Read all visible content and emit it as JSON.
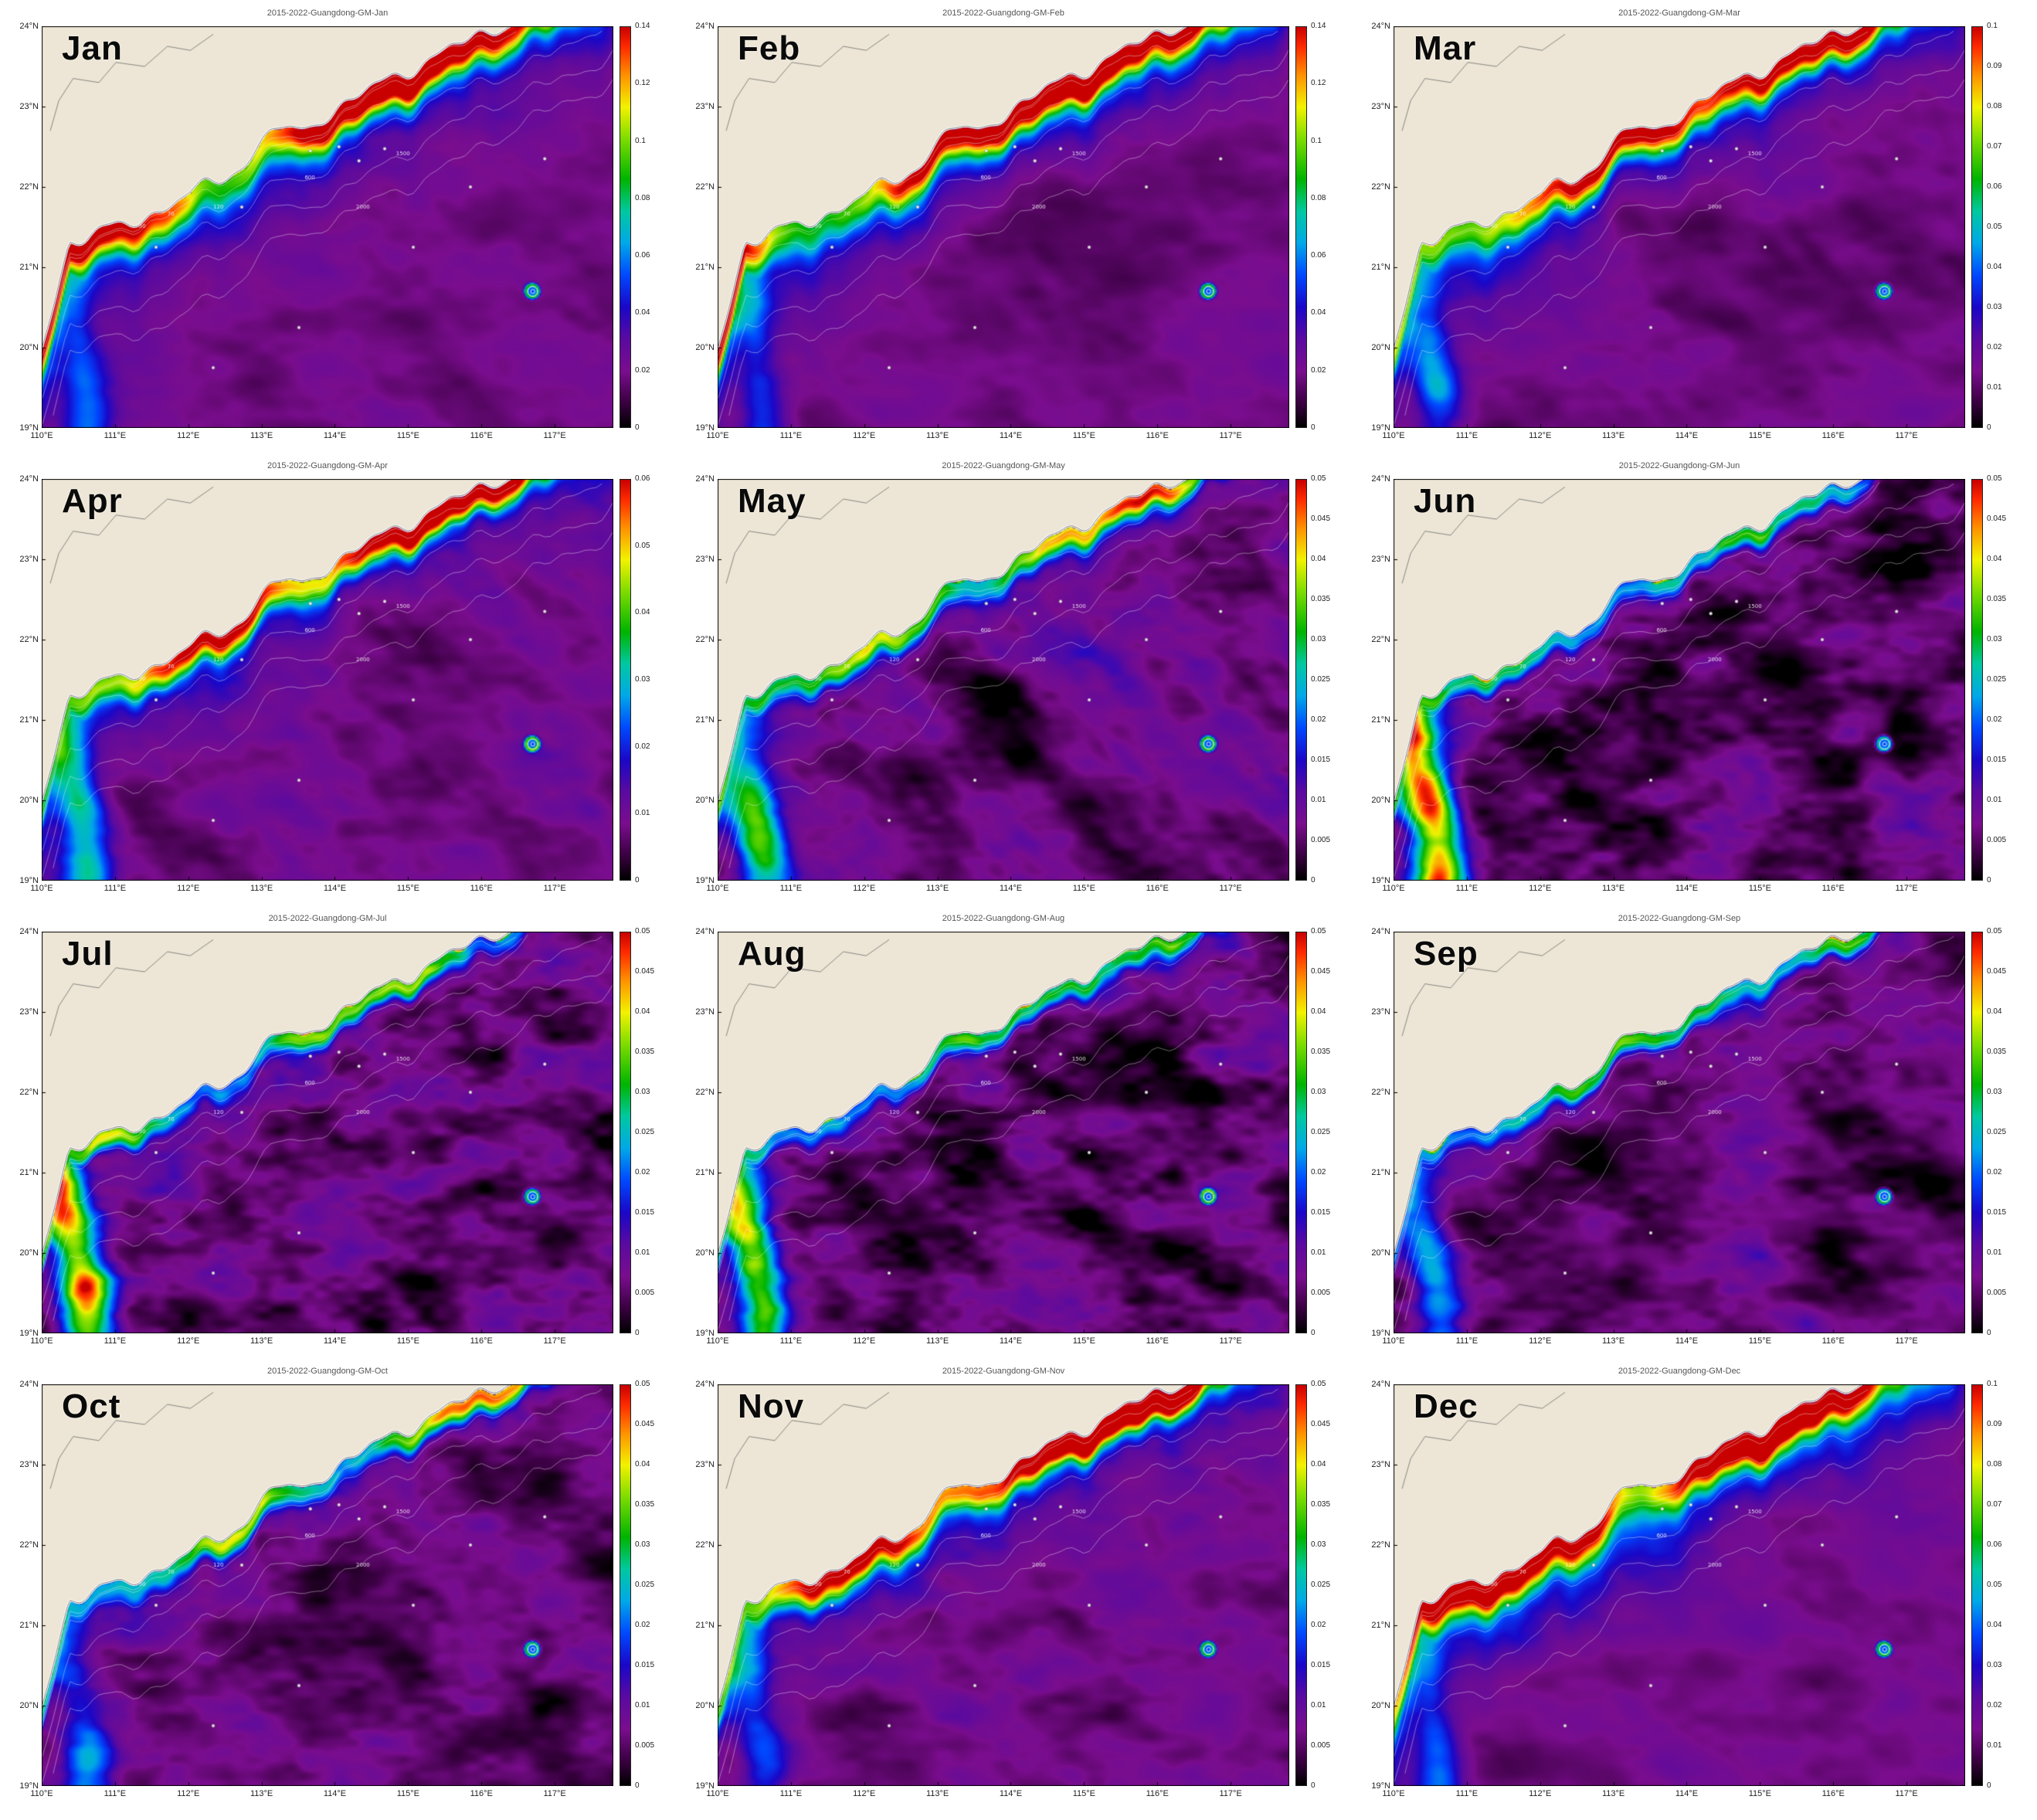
{
  "figure": {
    "layout": {
      "rows": 4,
      "cols": 3
    }
  },
  "chart_data": {
    "type": "heatmap",
    "description": "Twelve monthly climatology maps (2015-2022, Guangdong GM) over the northern South China Sea. High values (green/yellow/red) form a band along the Guangdong coast; open sea is low (purple/black). Depth contours and a small atoll ring near 116.7E 20.7N are overlaid.",
    "x_ticks": [
      "110°E",
      "111°E",
      "112°E",
      "113°E",
      "114°E",
      "115°E",
      "116°E",
      "117°E"
    ],
    "x_tick_lons": [
      110,
      111,
      112,
      113,
      114,
      115,
      116,
      117
    ],
    "y_ticks": [
      "24°N",
      "23°N",
      "22°N",
      "21°N",
      "20°N",
      "19°N"
    ],
    "y_tick_lats": [
      24,
      23,
      22,
      21,
      20,
      19
    ],
    "lon_range": [
      110,
      117.8
    ],
    "lat_range": [
      19,
      24
    ],
    "depth_contour_labels": [
      "50",
      "70",
      "120",
      "600",
      "1500",
      "2000"
    ],
    "land_color": "#ede6d6",
    "colormap": [
      [
        0.0,
        "#000000"
      ],
      [
        0.06,
        "#38003f"
      ],
      [
        0.14,
        "#7a0d8e"
      ],
      [
        0.22,
        "#5a0aa0"
      ],
      [
        0.3,
        "#1a07c8"
      ],
      [
        0.38,
        "#0048ff"
      ],
      [
        0.46,
        "#00a8e8"
      ],
      [
        0.54,
        "#00c8a0"
      ],
      [
        0.62,
        "#00b400"
      ],
      [
        0.72,
        "#7ddc00"
      ],
      [
        0.8,
        "#f2f200"
      ],
      [
        0.88,
        "#ff9000"
      ],
      [
        0.95,
        "#ff2a00"
      ],
      [
        1.0,
        "#c80000"
      ]
    ],
    "panels": [
      {
        "month": "Jan",
        "title": "2015-2022-Guangdong-GM-Jan",
        "cbar_max": 0.14,
        "cbar_step": 0.02,
        "viz": {
          "band": 0.75,
          "width": 0.055,
          "hot": 0.5,
          "coastp": 0.45,
          "left": 0.3,
          "halo": 0.22,
          "bg": 0.13,
          "noise": 0.055,
          "streak": 0.05,
          "nf": 6
        }
      },
      {
        "month": "Feb",
        "title": "2015-2022-Guangdong-GM-Feb",
        "cbar_max": 0.14,
        "cbar_step": 0.02,
        "viz": {
          "band": 0.78,
          "width": 0.055,
          "hot": 0.55,
          "coastp": 0.45,
          "left": 0.3,
          "halo": 0.22,
          "bg": 0.13,
          "noise": 0.055,
          "streak": 0.05,
          "nf": 6
        }
      },
      {
        "month": "Mar",
        "title": "2015-2022-Guangdong-GM-Mar",
        "cbar_max": 0.1,
        "cbar_step": 0.01,
        "viz": {
          "band": 0.72,
          "width": 0.05,
          "hot": 0.45,
          "coastp": 0.45,
          "left": 0.35,
          "halo": 0.18,
          "bg": 0.13,
          "noise": 0.06,
          "streak": 0.06,
          "nf": 6
        }
      },
      {
        "month": "Apr",
        "title": "2015-2022-Guangdong-GM-Apr",
        "cbar_max": 0.06,
        "cbar_step": 0.01,
        "viz": {
          "band": 0.68,
          "width": 0.045,
          "hot": 0.4,
          "coastp": 0.5,
          "left": 0.45,
          "halo": 0.15,
          "bg": 0.135,
          "noise": 0.07,
          "streak": 0.09,
          "nf": 7
        }
      },
      {
        "month": "May",
        "title": "2015-2022-Guangdong-GM-May",
        "cbar_max": 0.05,
        "cbar_step": 0.005,
        "viz": {
          "band": 0.52,
          "width": 0.035,
          "hot": 0.15,
          "coastp": 0.6,
          "left": 0.55,
          "halo": 0.12,
          "bg": 0.125,
          "noise": 0.09,
          "streak": 0.16,
          "nf": 8
        }
      },
      {
        "month": "Jun",
        "title": "2015-2022-Guangdong-GM-Jun",
        "cbar_max": 0.05,
        "cbar_step": 0.005,
        "viz": {
          "band": 0.45,
          "width": 0.03,
          "hot": 0.1,
          "coastp": 0.85,
          "left": 0.85,
          "halo": 0.05,
          "bg": 0.1,
          "noise": 0.13,
          "streak": 0.1,
          "nf": 9
        }
      },
      {
        "month": "Jul",
        "title": "2015-2022-Guangdong-GM-Jul",
        "cbar_max": 0.05,
        "cbar_step": 0.005,
        "viz": {
          "band": 0.5,
          "width": 0.03,
          "hot": 0.1,
          "coastp": 0.9,
          "left": 0.95,
          "halo": 0.05,
          "bg": 0.1,
          "noise": 0.14,
          "streak": 0.1,
          "nf": 9
        }
      },
      {
        "month": "Aug",
        "title": "2015-2022-Guangdong-GM-Aug",
        "cbar_max": 0.05,
        "cbar_step": 0.005,
        "viz": {
          "band": 0.48,
          "width": 0.03,
          "hot": 0.1,
          "coastp": 0.85,
          "left": 0.7,
          "halo": 0.05,
          "bg": 0.1,
          "noise": 0.14,
          "streak": 0.1,
          "nf": 9
        }
      },
      {
        "month": "Sep",
        "title": "2015-2022-Guangdong-GM-Sep",
        "cbar_max": 0.05,
        "cbar_step": 0.005,
        "viz": {
          "band": 0.45,
          "width": 0.028,
          "hot": 0.1,
          "coastp": 0.7,
          "left": 0.45,
          "halo": 0.06,
          "bg": 0.11,
          "noise": 0.12,
          "streak": 0.08,
          "nf": 8
        }
      },
      {
        "month": "Oct",
        "title": "2015-2022-Guangdong-GM-Oct",
        "cbar_max": 0.05,
        "cbar_step": 0.005,
        "viz": {
          "band": 0.55,
          "width": 0.035,
          "hot": 0.2,
          "coastp": 0.6,
          "left": 0.35,
          "halo": 0.08,
          "bg": 0.11,
          "noise": 0.11,
          "streak": 0.08,
          "nf": 8
        }
      },
      {
        "month": "Nov",
        "title": "2015-2022-Guangdong-GM-Nov",
        "cbar_max": 0.05,
        "cbar_step": 0.005,
        "viz": {
          "band": 0.8,
          "width": 0.05,
          "hot": 0.6,
          "coastp": 0.5,
          "left": 0.3,
          "halo": 0.18,
          "bg": 0.13,
          "noise": 0.08,
          "streak": 0.06,
          "nf": 7
        }
      },
      {
        "month": "Dec",
        "title": "2015-2022-Guangdong-GM-Dec",
        "cbar_max": 0.1,
        "cbar_step": 0.01,
        "viz": {
          "band": 0.82,
          "width": 0.06,
          "hot": 0.5,
          "coastp": 0.4,
          "left": 0.3,
          "halo": 0.25,
          "bg": 0.135,
          "noise": 0.06,
          "streak": 0.05,
          "nf": 6
        }
      }
    ]
  }
}
